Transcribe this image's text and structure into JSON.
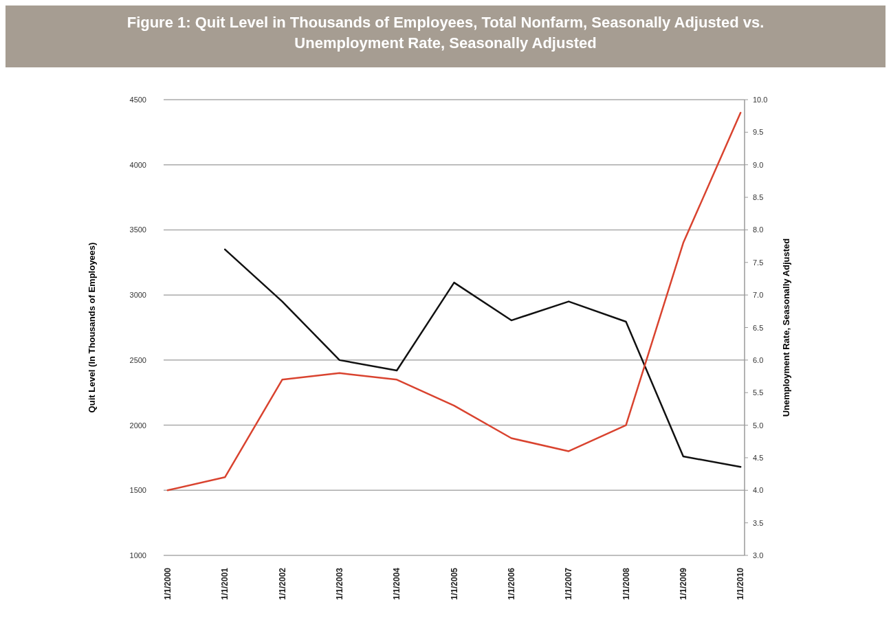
{
  "chart_data": {
    "type": "line",
    "title": "Figure 1: Quit Level in Thousands of Employees, Total Nonfarm, Seasonally Adjusted vs. Unemployment Rate, Seasonally Adjusted",
    "ylabel": "Quit Level (In Thousands of Employees)",
    "y2label": "Unemployment Rate, Seasonally Adjusted",
    "categories": [
      "1/1/2000",
      "1/1/2001",
      "1/1/2002",
      "1/1/2003",
      "1/1/2004",
      "1/1/2005",
      "1/1/2006",
      "1/1/2007",
      "1/1/2008",
      "1/1/2009",
      "1/1/2010"
    ],
    "series": [
      {
        "color": "#111111",
        "values": [
          null,
          3350,
          2950,
          2500,
          2420,
          3095,
          2805,
          2950,
          2795,
          1760,
          1680
        ]
      },
      {
        "color": "#d9432f",
        "axis": "y2",
        "values": [
          4.0,
          4.2,
          5.7,
          5.8,
          5.7,
          5.3,
          4.8,
          4.6,
          5.0,
          7.8,
          9.8
        ]
      }
    ],
    "ylim": [
      1000,
      4500
    ],
    "yticks": [
      1000,
      1500,
      2000,
      2500,
      3000,
      3500,
      4000,
      4500
    ],
    "y2lim": [
      3.0,
      10.0
    ],
    "y2ticks": [
      {
        "value": 3,
        "label": "3.0"
      },
      {
        "value": 3.5,
        "label": "3.5"
      },
      {
        "value": 4,
        "label": "4.0"
      },
      {
        "value": 4.5,
        "label": "4.5"
      },
      {
        "value": 5,
        "label": "5.0"
      },
      {
        "value": 5.5,
        "label": "5.5"
      },
      {
        "value": 6,
        "label": "6.0"
      },
      {
        "value": 6.5,
        "label": "6.5"
      },
      {
        "value": 7,
        "label": "7.0"
      },
      {
        "value": 7.5,
        "label": "7.5"
      },
      {
        "value": 8,
        "label": "8.0"
      },
      {
        "value": 8.5,
        "label": "8.5"
      },
      {
        "value": 9,
        "label": "9.0"
      },
      {
        "value": 9.5,
        "label": "9.5"
      },
      {
        "value": 10,
        "label": "10.0"
      }
    ],
    "grid": "y",
    "line_style": "solid",
    "marker": "none"
  }
}
